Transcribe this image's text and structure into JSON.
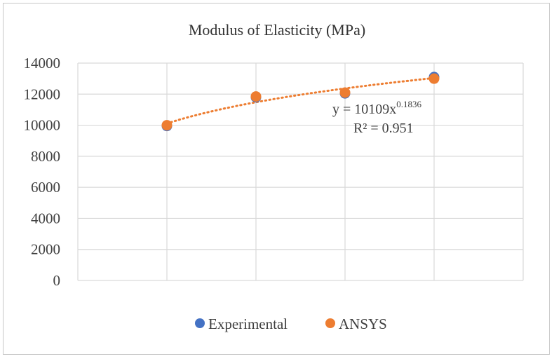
{
  "chart_data": {
    "type": "scatter",
    "title": "Modulus of Elasticity (MPa)",
    "xlabel": "",
    "ylabel": "",
    "x": [
      1,
      2,
      3,
      4
    ],
    "ylim": [
      0,
      14000
    ],
    "xlim": [
      0,
      5
    ],
    "y_ticks": [
      "0",
      "2000",
      "4000",
      "6000",
      "8000",
      "10000",
      "12000",
      "14000"
    ],
    "y_tick_values": [
      0,
      2000,
      4000,
      6000,
      8000,
      10000,
      12000,
      14000
    ],
    "grid": true,
    "legend_position": "bottom",
    "series": [
      {
        "name": "Experimental",
        "color": "#4472C4",
        "values": [
          9950,
          11800,
          12050,
          13100
        ]
      },
      {
        "name": "ANSYS",
        "color": "#ED7D31",
        "values": [
          10000,
          11850,
          12100,
          13000
        ]
      }
    ],
    "trendline": {
      "type": "power",
      "color": "#ED7D31",
      "a": 10109,
      "b": 0.1836,
      "equation_prefix": "y = 10109x",
      "equation_exponent": "0.1836",
      "r2_text": "R² = 0.951"
    }
  }
}
